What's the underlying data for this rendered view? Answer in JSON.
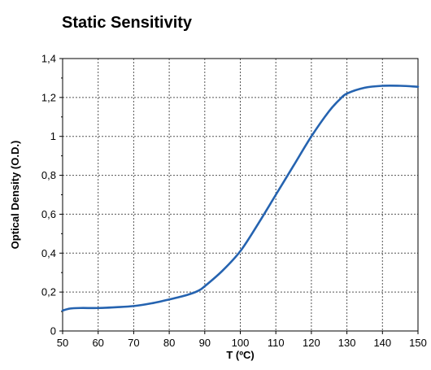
{
  "chart_data": {
    "type": "line",
    "title": "Static Sensitivity",
    "xlabel": "T (ºC)",
    "ylabel": "Optical Density (O.D.)",
    "xlim": [
      50,
      150
    ],
    "ylim": [
      0,
      1.4
    ],
    "xticks": [
      50,
      60,
      70,
      80,
      90,
      100,
      110,
      120,
      130,
      140,
      150
    ],
    "xtick_labels": [
      "50",
      "60",
      "70",
      "80",
      "90",
      "100",
      "110",
      "120",
      "130",
      "140",
      "150"
    ],
    "yticks": [
      0,
      0.2,
      0.4,
      0.6,
      0.8,
      1,
      1.2,
      1.4
    ],
    "ytick_labels": [
      "0",
      "0,2",
      "0,4",
      "0,6",
      "0,8",
      "1",
      "1,2",
      "1,4"
    ],
    "grid": true,
    "line_color": "#2563b0",
    "series": [
      {
        "x": [
          50,
          52,
          55,
          60,
          65,
          70,
          75,
          80,
          85,
          88,
          90,
          95,
          100,
          105,
          110,
          115,
          120,
          125,
          128,
          130,
          135,
          140,
          145,
          150
        ],
        "y": [
          0.105,
          0.115,
          0.118,
          0.118,
          0.122,
          0.128,
          0.142,
          0.162,
          0.185,
          0.205,
          0.23,
          0.31,
          0.41,
          0.55,
          0.7,
          0.85,
          1.0,
          1.13,
          1.19,
          1.22,
          1.25,
          1.26,
          1.26,
          1.255
        ]
      }
    ]
  }
}
